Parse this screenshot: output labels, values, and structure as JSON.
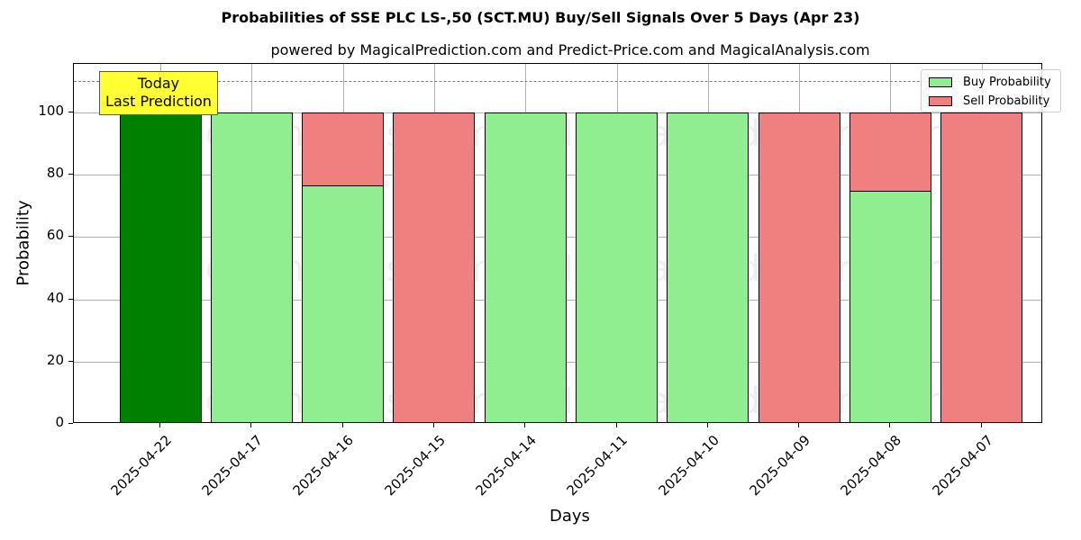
{
  "chart_data": {
    "type": "bar",
    "stacked": true,
    "title": "Probabilities of SSE PLC  LS-,50 (SCT.MU) Buy/Sell Signals Over 5 Days (Apr 23)",
    "subtitle": "powered by MagicalPrediction.com and Predict-Price.com and MagicalAnalysis.com",
    "xlabel": "Days",
    "ylabel": "Probability",
    "ylim": [
      0,
      115
    ],
    "yticks": [
      0,
      20,
      40,
      60,
      80,
      100
    ],
    "grid": true,
    "legend_position": "upper right",
    "categories": [
      "2025-04-22",
      "2025-04-17",
      "2025-04-16",
      "2025-04-15",
      "2025-04-14",
      "2025-04-11",
      "2025-04-10",
      "2025-04-09",
      "2025-04-08",
      "2025-04-07"
    ],
    "series": [
      {
        "name": "Buy Probability",
        "color": "#90ee90",
        "values": [
          100,
          100,
          76.5,
          0,
          100,
          100,
          100,
          0,
          75,
          0
        ]
      },
      {
        "name": "Sell Probability",
        "color": "#f08080",
        "values": [
          0,
          0,
          23.5,
          100,
          0,
          0,
          0,
          100,
          25,
          100
        ]
      }
    ],
    "highlight": {
      "category": "2025-04-22",
      "color": "#008000"
    },
    "reference_line": {
      "y": 110,
      "style": "dashed",
      "color": "#808080"
    },
    "annotations": [
      {
        "text": "Today\nLast Prediction",
        "x": "2025-04-22",
        "background": "#ffff33"
      }
    ],
    "watermarks": [
      "MagicalAnalysis.com",
      "MagicalPrediction.com"
    ]
  },
  "annotation": {
    "line1": "Today",
    "line2": "Last Prediction"
  },
  "legend": {
    "buy": "Buy Probability",
    "sell": "Sell Probability"
  }
}
